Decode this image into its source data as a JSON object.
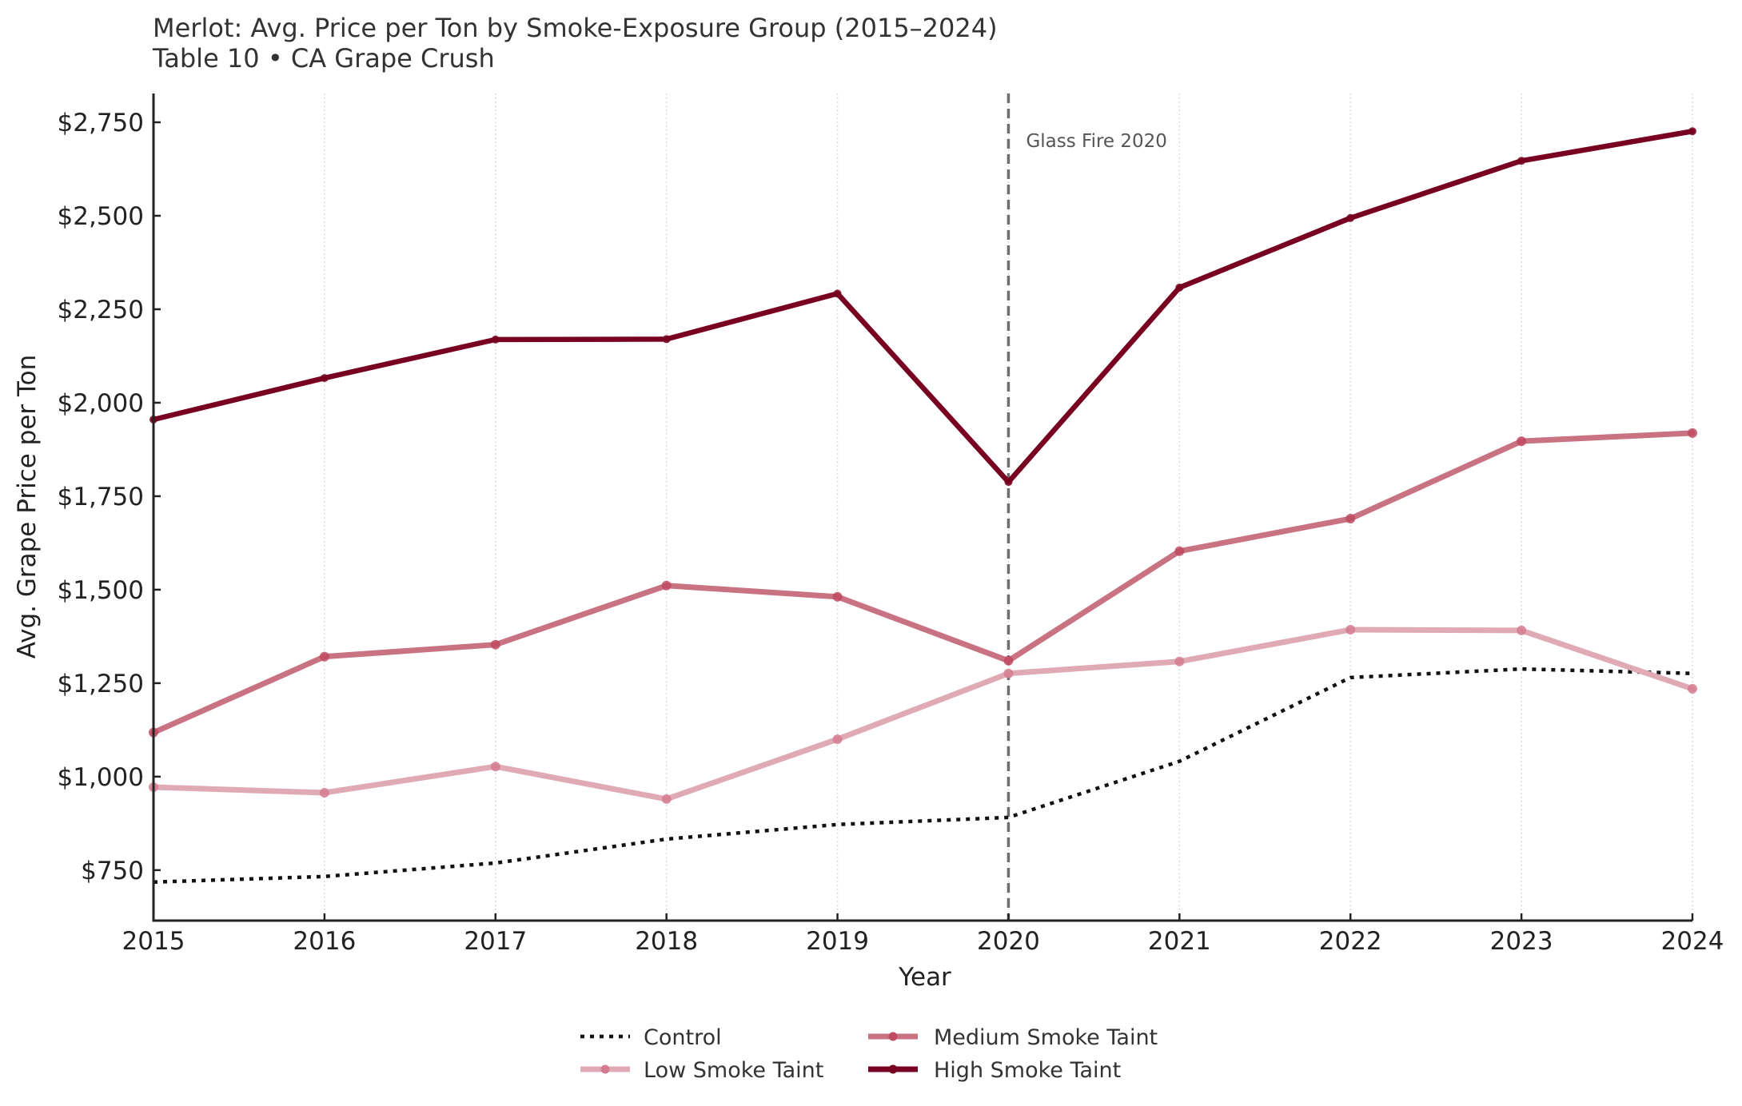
{
  "chart_data": {
    "type": "line",
    "title": "Merlot: Avg. Price per Ton by Smoke-Exposure Group (2015–2024)",
    "subtitle": "Table 10 • CA Grape Crush",
    "xlabel": "Year",
    "ylabel": "Avg. Grape Price per Ton",
    "x": [
      2015,
      2016,
      2017,
      2018,
      2019,
      2020,
      2021,
      2022,
      2023,
      2024
    ],
    "x_tick_labels": [
      "2015",
      "2016",
      "2017",
      "2018",
      "2019",
      "2020",
      "2021",
      "2022",
      "2023",
      "2024"
    ],
    "y_ticks": [
      750,
      1000,
      1250,
      1500,
      1750,
      2000,
      2250,
      2500,
      2750
    ],
    "y_tick_labels": [
      "$750",
      "$1,000",
      "$1,250",
      "$1,500",
      "$1,750",
      "$2,000",
      "$2,250",
      "$2,500",
      "$2,750"
    ],
    "xlim": [
      2015,
      2024
    ],
    "ylim": [
      615,
      2827
    ],
    "grid": "vertical dotted",
    "legend_position": "bottom-center",
    "series": [
      {
        "name": "Control",
        "style": "dotted",
        "color": "#111111",
        "markers": false,
        "values": [
          718,
          733,
          769,
          833,
          872,
          891,
          1041,
          1265,
          1288,
          1276
        ]
      },
      {
        "name": "Low Smoke Taint",
        "style": "solid",
        "color": "#e0aab5",
        "marker_color": "#d27d8f",
        "markers": true,
        "values": [
          972,
          957,
          1027,
          940,
          1100,
          1276,
          1308,
          1393,
          1391,
          1235
        ]
      },
      {
        "name": "Medium Smoke Taint",
        "style": "solid",
        "color": "#c87282",
        "marker_color": "#c04a62",
        "markers": true,
        "values": [
          1118,
          1321,
          1353,
          1511,
          1481,
          1310,
          1603,
          1690,
          1897,
          1919
        ]
      },
      {
        "name": "High Smoke Taint",
        "style": "solid",
        "color": "#780020",
        "marker_color": "#780020",
        "markers": true,
        "values": [
          1955,
          2066,
          2169,
          2170,
          2292,
          1788,
          2308,
          2494,
          2647,
          2726
        ]
      }
    ],
    "annotations": [
      {
        "type": "vline",
        "x": 2020,
        "label": "Glass Fire 2020",
        "color": "#6e6e6e",
        "style": "dashed"
      }
    ]
  }
}
